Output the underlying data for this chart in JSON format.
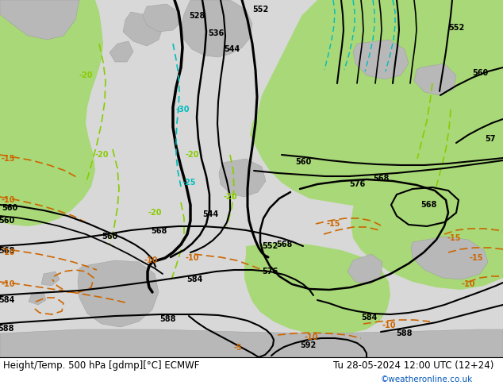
{
  "title_left": "Height/Temp. 500 hPa [gdmp][°C] ECMWF",
  "title_right": "Tu 28-05-2024 12:00 UTC (12+24)",
  "credit": "©weatheronline.co.uk",
  "map_bg": "#d8d8d8",
  "green_fill": "#a8d878",
  "gray_land": "#b8b8b8",
  "height_color": "#000000",
  "temp_neg_color": "#cc6600",
  "temp_pos_color": "#88cc00",
  "cyan_color": "#00bbbb",
  "footer_bg": "#ffffff",
  "title_color": "#000000",
  "credit_color": "#0055bb",
  "font_title": 8.5,
  "font_credit": 7.5,
  "font_label": 7
}
